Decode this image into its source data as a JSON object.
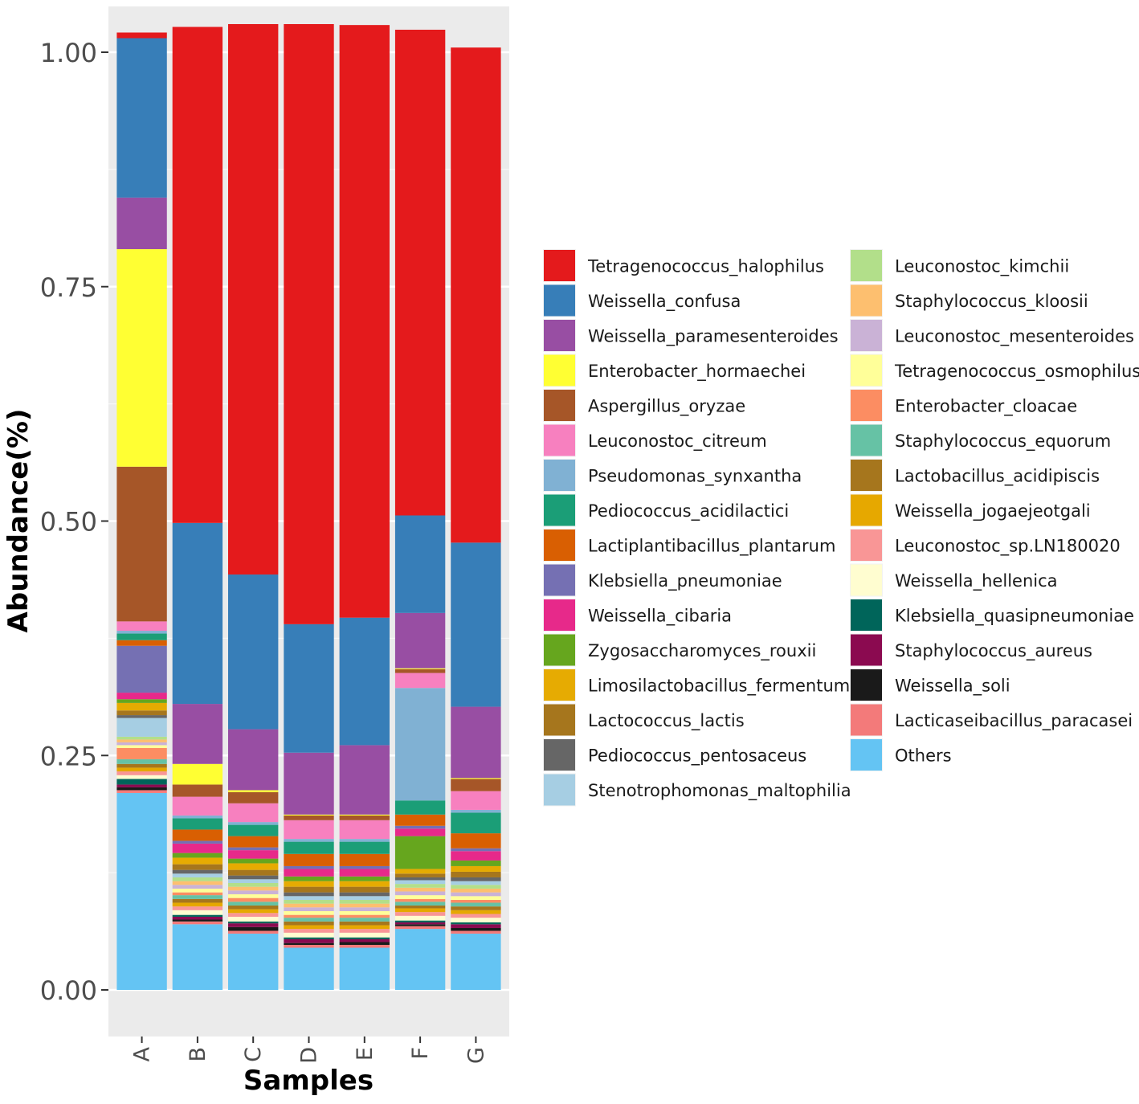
{
  "chart_data": {
    "type": "bar",
    "stacked": true,
    "title": "",
    "xlabel": "Samples",
    "ylabel": "Abundance(%)",
    "ylim": [
      0,
      1.05
    ],
    "yticks": [
      0.0,
      0.25,
      0.5,
      0.75,
      1.0
    ],
    "ytick_labels": [
      "0.00",
      "0.25",
      "0.50",
      "0.75",
      "1.00"
    ],
    "categories": [
      "A",
      "B",
      "C",
      "D",
      "E",
      "F",
      "G"
    ],
    "legend_position": "right",
    "series": [
      {
        "name": "Others",
        "color": "#64C4F3",
        "values": [
          0.21,
          0.07,
          0.06,
          0.045,
          0.045,
          0.065,
          0.06
        ]
      },
      {
        "name": "Lacticaseibacillus_paracasei",
        "color": "#F37A7A",
        "values": [
          0.003,
          0.003,
          0.003,
          0.003,
          0.003,
          0.003,
          0.003
        ]
      },
      {
        "name": "Weissella_soli",
        "color": "#1A1A1A",
        "values": [
          0.003,
          0.002,
          0.004,
          0.002,
          0.003,
          0.002,
          0.003
        ]
      },
      {
        "name": "Staphylococcus_aureus",
        "color": "#8B0A50",
        "values": [
          0.003,
          0.003,
          0.004,
          0.004,
          0.003,
          0.002,
          0.004
        ]
      },
      {
        "name": "Klebsiella_quasipneumoniae",
        "color": "#00655A",
        "values": [
          0.006,
          0.002,
          0.002,
          0.002,
          0.002,
          0.002,
          0.002
        ]
      },
      {
        "name": "Weissella_hellenica",
        "color": "#FFFDD0",
        "values": [
          0.004,
          0.005,
          0.005,
          0.005,
          0.005,
          0.005,
          0.005
        ]
      },
      {
        "name": "Leuconostoc_sp.LN180020",
        "color": "#F99696",
        "values": [
          0.004,
          0.004,
          0.004,
          0.004,
          0.004,
          0.004,
          0.004
        ]
      },
      {
        "name": "Weissella_jogaejeotgali",
        "color": "#E6A800",
        "values": [
          0.004,
          0.004,
          0.004,
          0.004,
          0.004,
          0.004,
          0.004
        ]
      },
      {
        "name": "Lactobacillus_acidipiscis",
        "color": "#A6761D",
        "values": [
          0.004,
          0.004,
          0.004,
          0.004,
          0.004,
          0.003,
          0.004
        ]
      },
      {
        "name": "Staphylococcus_equorum",
        "color": "#66C2A5",
        "values": [
          0.005,
          0.004,
          0.004,
          0.004,
          0.004,
          0.004,
          0.004
        ]
      },
      {
        "name": "Enterobacter_cloacae",
        "color": "#FC8D62",
        "values": [
          0.012,
          0.003,
          0.004,
          0.003,
          0.003,
          0.003,
          0.003
        ]
      },
      {
        "name": "Tetragenococcus_osmophilus",
        "color": "#FFFF99",
        "values": [
          0.003,
          0.004,
          0.004,
          0.004,
          0.004,
          0.004,
          0.004
        ]
      },
      {
        "name": "Leuconostoc_mesenteroides",
        "color": "#CAB2D6",
        "values": [
          0.003,
          0.004,
          0.004,
          0.004,
          0.004,
          0.004,
          0.004
        ]
      },
      {
        "name": "Staphylococcus_kloosii",
        "color": "#FDBF6F",
        "values": [
          0.003,
          0.004,
          0.004,
          0.004,
          0.004,
          0.004,
          0.004
        ]
      },
      {
        "name": "Leuconostoc_kimchii",
        "color": "#B2DF8A",
        "values": [
          0.003,
          0.004,
          0.004,
          0.004,
          0.004,
          0.004,
          0.004
        ]
      },
      {
        "name": "Stenotrophomonas_maltophilia",
        "color": "#A6CEE3",
        "values": [
          0.02,
          0.004,
          0.004,
          0.004,
          0.004,
          0.004,
          0.004
        ]
      },
      {
        "name": "Pediococcus_pentosaceus",
        "color": "#666666",
        "values": [
          0.003,
          0.004,
          0.004,
          0.004,
          0.004,
          0.003,
          0.004
        ]
      },
      {
        "name": "Lactococcus_lactis",
        "color": "#A6761D",
        "values": [
          0.005,
          0.006,
          0.006,
          0.006,
          0.006,
          0.004,
          0.006
        ]
      },
      {
        "name": "Limosilactobacillus_fermentum",
        "color": "#E6AB02",
        "values": [
          0.008,
          0.007,
          0.007,
          0.006,
          0.006,
          0.005,
          0.006
        ]
      },
      {
        "name": "Zygosaccharomyces_rouxii",
        "color": "#66A61E",
        "values": [
          0.004,
          0.005,
          0.005,
          0.005,
          0.005,
          0.035,
          0.006
        ]
      },
      {
        "name": "Weissella_cibaria",
        "color": "#E7298A",
        "values": [
          0.007,
          0.01,
          0.009,
          0.008,
          0.008,
          0.008,
          0.01
        ]
      },
      {
        "name": "Klebsiella_pneumoniae",
        "color": "#7570B3",
        "values": [
          0.05,
          0.003,
          0.003,
          0.003,
          0.003,
          0.003,
          0.003
        ]
      },
      {
        "name": "Lactiplantibacillus_plantarum",
        "color": "#D95F02",
        "values": [
          0.006,
          0.012,
          0.012,
          0.013,
          0.013,
          0.012,
          0.016
        ]
      },
      {
        "name": "Pediococcus_acidilactici",
        "color": "#1B9E77",
        "values": [
          0.007,
          0.012,
          0.012,
          0.013,
          0.013,
          0.015,
          0.022
        ]
      },
      {
        "name": "Pseudomonas_synxantha",
        "color": "#80B1D3",
        "values": [
          0.003,
          0.003,
          0.003,
          0.003,
          0.003,
          0.12,
          0.003
        ]
      },
      {
        "name": "Leuconostoc_citreum",
        "color": "#F780BF",
        "values": [
          0.01,
          0.02,
          0.02,
          0.02,
          0.02,
          0.016,
          0.02
        ]
      },
      {
        "name": "Aspergillus_oryzae",
        "color": "#A65628",
        "values": [
          0.165,
          0.013,
          0.012,
          0.005,
          0.005,
          0.004,
          0.013
        ]
      },
      {
        "name": "Enterobacter_hormaechei",
        "color": "#FFFF33",
        "values": [
          0.232,
          0.022,
          0.002,
          0.001,
          0.001,
          0.001,
          0.001
        ]
      },
      {
        "name": "Weissella_paramesenteroides",
        "color": "#984EA3",
        "values": [
          0.055,
          0.064,
          0.065,
          0.066,
          0.074,
          0.059,
          0.076
        ]
      },
      {
        "name": "Weissella_confusa",
        "color": "#377EB8",
        "values": [
          0.17,
          0.193,
          0.165,
          0.137,
          0.136,
          0.104,
          0.175
        ]
      },
      {
        "name": "Tetragenococcus_halophilus",
        "color": "#E41A1C",
        "values": [
          0.006,
          0.529,
          0.587,
          0.64,
          0.632,
          0.518,
          0.528
        ]
      }
    ],
    "legend": [
      {
        "label": "Tetragenococcus_halophilus",
        "color": "#E41A1C"
      },
      {
        "label": "Weissella_confusa",
        "color": "#377EB8"
      },
      {
        "label": "Weissella_paramesenteroides",
        "color": "#984EA3"
      },
      {
        "label": "Enterobacter_hormaechei",
        "color": "#FFFF33"
      },
      {
        "label": "Aspergillus_oryzae",
        "color": "#A65628"
      },
      {
        "label": "Leuconostoc_citreum",
        "color": "#F780BF"
      },
      {
        "label": "Pseudomonas_synxantha",
        "color": "#80B1D3"
      },
      {
        "label": "Pediococcus_acidilactici",
        "color": "#1B9E77"
      },
      {
        "label": "Lactiplantibacillus_plantarum",
        "color": "#D95F02"
      },
      {
        "label": "Klebsiella_pneumoniae",
        "color": "#7570B3"
      },
      {
        "label": "Weissella_cibaria",
        "color": "#E7298A"
      },
      {
        "label": "Zygosaccharomyces_rouxii",
        "color": "#66A61E"
      },
      {
        "label": "Limosilactobacillus_fermentum",
        "color": "#E6AB02"
      },
      {
        "label": "Lactococcus_lactis",
        "color": "#A6761D"
      },
      {
        "label": "Pediococcus_pentosaceus",
        "color": "#666666"
      },
      {
        "label": "Stenotrophomonas_maltophilia",
        "color": "#A6CEE3"
      },
      {
        "label": "Leuconostoc_kimchii",
        "color": "#B2DF8A"
      },
      {
        "label": "Staphylococcus_kloosii",
        "color": "#FDBF6F"
      },
      {
        "label": "Leuconostoc_mesenteroides",
        "color": "#CAB2D6"
      },
      {
        "label": "Tetragenococcus_osmophilus",
        "color": "#FFFF99"
      },
      {
        "label": "Enterobacter_cloacae",
        "color": "#FC8D62"
      },
      {
        "label": "Staphylococcus_equorum",
        "color": "#66C2A5"
      },
      {
        "label": "Lactobacillus_acidipiscis",
        "color": "#A6761D"
      },
      {
        "label": "Weissella_jogaejeotgali",
        "color": "#E6A800"
      },
      {
        "label": "Leuconostoc_sp.LN180020",
        "color": "#F99696"
      },
      {
        "label": "Weissella_hellenica",
        "color": "#FFFDD0"
      },
      {
        "label": "Klebsiella_quasipneumoniae",
        "color": "#00655A"
      },
      {
        "label": "Staphylococcus_aureus",
        "color": "#8B0A50"
      },
      {
        "label": "Weissella_soli",
        "color": "#1A1A1A"
      },
      {
        "label": "Lacticaseibacillus_paracasei",
        "color": "#F37A7A"
      },
      {
        "label": "Others",
        "color": "#64C4F3"
      }
    ]
  }
}
